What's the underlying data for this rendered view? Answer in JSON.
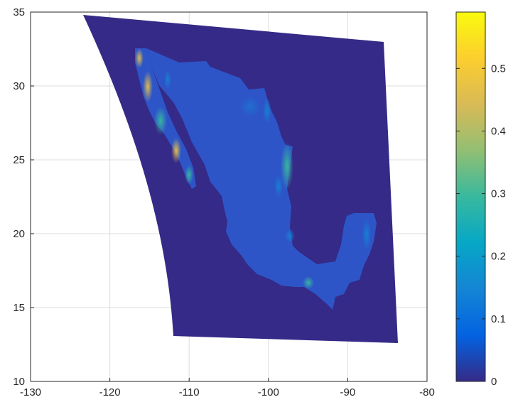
{
  "chart_data": {
    "type": "heatmap",
    "xlim": [
      -130,
      -80
    ],
    "ylim": [
      10,
      35
    ],
    "x_ticks": [
      -130,
      -120,
      -110,
      -100,
      -90,
      -80
    ],
    "y_ticks": [
      10,
      15,
      20,
      25,
      30,
      35
    ],
    "x_tick_labels": [
      "-130",
      "-120",
      "-110",
      "-100",
      "-90",
      "-80"
    ],
    "y_tick_labels": [
      "10",
      "15",
      "20",
      "25",
      "30",
      "35"
    ],
    "grid": true,
    "colorbar": {
      "limits": [
        0,
        0.59
      ],
      "ticks": [
        0,
        0.1,
        0.2,
        0.3,
        0.4,
        0.5
      ],
      "tick_labels": [
        "0",
        "0.1",
        "0.2",
        "0.3",
        "0.4",
        "0.5"
      ],
      "colormap": "parula",
      "colors": [
        "#352a87",
        "#0363e1",
        "#1485d4",
        "#06a7c6",
        "#38b99e",
        "#92bf73",
        "#d9ba56",
        "#fcce2e",
        "#f9fb0e"
      ]
    },
    "background_value": 0,
    "data_extent_corners": [
      [
        -123.3,
        34.9
      ],
      [
        -86,
        33.1
      ],
      [
        -84.3,
        12.6
      ],
      [
        -112.3,
        13
      ]
    ]
  }
}
